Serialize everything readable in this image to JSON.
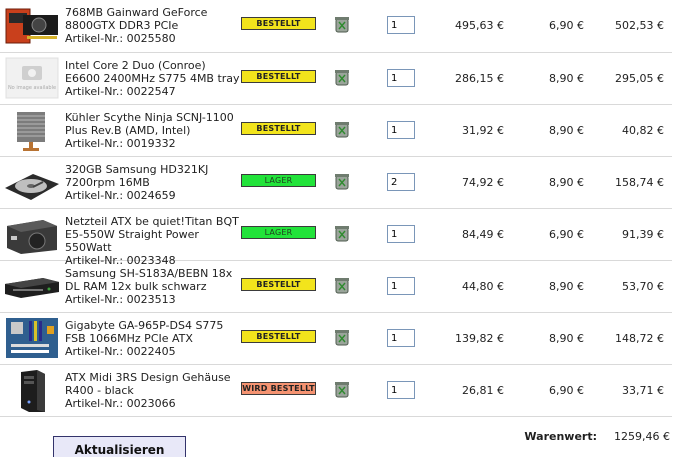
{
  "cart": {
    "items": [
      {
        "name": "768MB Gainward GeForce 8800GTX DDR3 PCIe",
        "article": "Artikel-Nr.: 0025580",
        "status": "BESTELLT",
        "status_kind": "bestellt",
        "qty": "1",
        "unit_price": "495,63 €",
        "shipping": "6,90 €",
        "total": "502,53 €",
        "image_icon": "graphics-card-icon"
      },
      {
        "name": "Intel Core 2 Duo (Conroe) E6600 2400MHz S775 4MB tray",
        "article": "Artikel-Nr.: 0022547",
        "status": "BESTELLT",
        "status_kind": "bestellt",
        "qty": "1",
        "unit_price": "286,15 €",
        "shipping": "8,90 €",
        "total": "295,05 €",
        "image_icon": "no-image-available-icon",
        "image_caption": "No image available"
      },
      {
        "name": "Kühler Scythe Ninja SCNJ-1100 Plus Rev.B (AMD, Intel)",
        "article": "Artikel-Nr.: 0019332",
        "status": "BESTELLT",
        "status_kind": "bestellt",
        "qty": "1",
        "unit_price": "31,92 €",
        "shipping": "8,90 €",
        "total": "40,82 €",
        "image_icon": "cpu-cooler-icon"
      },
      {
        "name": "320GB Samsung HD321KJ 7200rpm 16MB",
        "article": "Artikel-Nr.: 0024659",
        "status": "LAGER",
        "status_kind": "lager",
        "qty": "2",
        "unit_price": "74,92 €",
        "shipping": "8,90 €",
        "total": "158,74 €",
        "image_icon": "hard-drive-icon"
      },
      {
        "name": "Netzteil ATX be quiet!Titan BQT E5-550W Straight Power 550Watt",
        "article": "Artikel-Nr.: 0023348",
        "status": "LAGER",
        "status_kind": "lager",
        "qty": "1",
        "unit_price": "84,49 €",
        "shipping": "6,90 €",
        "total": "91,39 €",
        "image_icon": "power-supply-icon"
      },
      {
        "name": "Samsung SH-S183A/BEBN 18x DL RAM 12x bulk schwarz",
        "article": "Artikel-Nr.: 0023513",
        "status": "BESTELLT",
        "status_kind": "bestellt",
        "qty": "1",
        "unit_price": "44,80 €",
        "shipping": "8,90 €",
        "total": "53,70 €",
        "image_icon": "optical-drive-icon"
      },
      {
        "name": "Gigabyte GA-965P-DS4 S775 FSB 1066MHz PCIe ATX",
        "article": "Artikel-Nr.: 0022405",
        "status": "BESTELLT",
        "status_kind": "bestellt",
        "qty": "1",
        "unit_price": "139,82 €",
        "shipping": "8,90 €",
        "total": "148,72 €",
        "image_icon": "motherboard-icon"
      },
      {
        "name": "ATX Midi 3RS Design Gehäuse R400 - black",
        "article": "Artikel-Nr.: 0023066",
        "status": "WIRD BESTELLT",
        "status_kind": "wird",
        "qty": "1",
        "unit_price": "26,81 €",
        "shipping": "6,90 €",
        "total": "33,71 €",
        "image_icon": "pc-case-icon"
      }
    ]
  },
  "footer": {
    "update_label": "Aktualisieren",
    "warenwert_label": "Warenwert:",
    "warenwert_value": "1259,46 €"
  },
  "colors": {
    "bestellt": "#f2e41c",
    "lager": "#22e33a",
    "wird_bestellt": "#f59371"
  }
}
